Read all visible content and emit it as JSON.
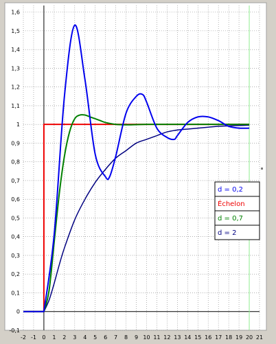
{
  "chart_data": {
    "type": "line",
    "title": "",
    "xlabel": "",
    "ylabel": "",
    "xlim": [
      -2,
      21
    ],
    "ylim": [
      -0.1,
      1.65
    ],
    "grid": true,
    "legend_placement": "right",
    "x_ticks": [
      "-2",
      "-1",
      "0",
      "1",
      "2",
      "3",
      "4",
      "5",
      "6",
      "7",
      "8",
      "9",
      "10",
      "11",
      "12",
      "13",
      "14",
      "15",
      "16",
      "17",
      "18",
      "19",
      "20",
      "21"
    ],
    "y_ticks": [
      "-0,1",
      "0",
      "0,1",
      "0,2",
      "0,3",
      "0,4",
      "0,5",
      "0,6",
      "0,7",
      "0,8",
      "0,9",
      "1",
      "1,1",
      "1,2",
      "1,3",
      "1,4",
      "1,5",
      "1,6"
    ],
    "series": [
      {
        "name": "d = 0,2",
        "color": "#0000ee",
        "stroke_width": 2,
        "x": [
          -2,
          0,
          1,
          2,
          3,
          4,
          5,
          6,
          6.4,
          7,
          8,
          9,
          9.6,
          10,
          11,
          12,
          12.7,
          13,
          14,
          15,
          16,
          17,
          18,
          19,
          20
        ],
        "y": [
          0,
          0,
          0.41,
          1.15,
          1.53,
          1.24,
          0.84,
          0.72,
          0.72,
          0.83,
          1.06,
          1.15,
          1.16,
          1.12,
          0.98,
          0.93,
          0.92,
          0.94,
          1.01,
          1.04,
          1.04,
          1.02,
          0.99,
          0.98,
          0.98
        ]
      },
      {
        "name": "Échelon",
        "color": "#ee0000",
        "stroke_width": 2,
        "x": [
          -2,
          0,
          0,
          20
        ],
        "y": [
          0,
          0,
          1,
          1
        ]
      },
      {
        "name": "d = 0,7",
        "color": "#008000",
        "stroke_width": 2,
        "x": [
          -2,
          0,
          0.5,
          1,
          1.5,
          2,
          2.5,
          3,
          3.5,
          4,
          4.5,
          5,
          5.5,
          6,
          7,
          8,
          9,
          10,
          12,
          14,
          16,
          18,
          20
        ],
        "y": [
          0,
          0,
          0.11,
          0.37,
          0.63,
          0.83,
          0.96,
          1.03,
          1.05,
          1.05,
          1.04,
          1.03,
          1.02,
          1.01,
          1.0,
          0.998,
          0.999,
          1.0,
          1.0,
          1.0,
          1.0,
          1.0,
          1.0
        ]
      },
      {
        "name": "d = 2",
        "color": "#000080",
        "stroke_width": 1.5,
        "x": [
          -2,
          0,
          0.5,
          1,
          1.5,
          2,
          3,
          4,
          5,
          6,
          7,
          8,
          9,
          10,
          11,
          12,
          13,
          14,
          15,
          16,
          17,
          18,
          19,
          20
        ],
        "y": [
          0,
          0,
          0.06,
          0.15,
          0.25,
          0.34,
          0.49,
          0.6,
          0.69,
          0.76,
          0.82,
          0.86,
          0.9,
          0.92,
          0.94,
          0.96,
          0.97,
          0.975,
          0.98,
          0.985,
          0.99,
          0.992,
          0.994,
          0.996
        ]
      }
    ]
  },
  "colors": {
    "window_bg": "#d4d0c8",
    "plot_bg": "#ffffff",
    "grid": "#808080",
    "axes": "#000000",
    "marker_line": "#90ee90"
  }
}
